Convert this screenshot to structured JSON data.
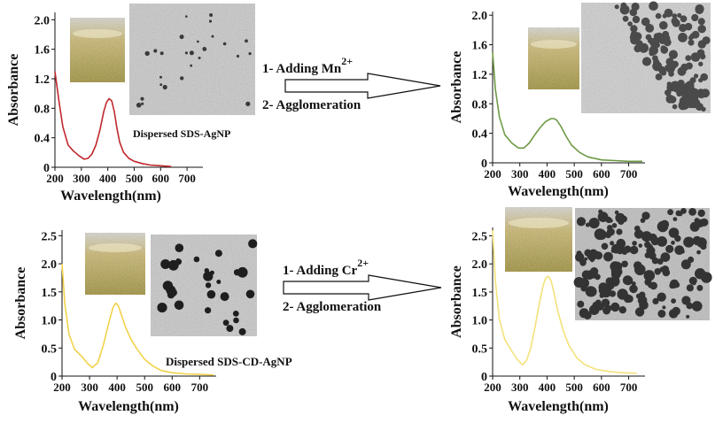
{
  "chart_data": [
    {
      "type": "line",
      "xlabel": "Wavelength(nm)",
      "ylabel": "Absorbance",
      "xlim": [
        200,
        760
      ],
      "ylim": [
        0,
        2.1
      ],
      "xticks": [
        200,
        300,
        400,
        500,
        600,
        700
      ],
      "yticks": [
        0,
        0.4,
        0.8,
        1.2,
        1.6,
        2.0
      ],
      "ytick_labels": [
        "0",
        "0.4",
        "0.8",
        "1.2",
        "1.6",
        "2.0"
      ],
      "series": [
        {
          "color": "#c0282d",
          "x": [
            200,
            215,
            230,
            250,
            270,
            290,
            310,
            325,
            340,
            355,
            370,
            385,
            395,
            405,
            415,
            425,
            435,
            445,
            460,
            480,
            500,
            530,
            560,
            600,
            640
          ],
          "y": [
            1.3,
            0.9,
            0.55,
            0.3,
            0.22,
            0.16,
            0.11,
            0.12,
            0.18,
            0.3,
            0.5,
            0.76,
            0.88,
            0.93,
            0.9,
            0.75,
            0.52,
            0.34,
            0.2,
            0.12,
            0.08,
            0.05,
            0.03,
            0.02,
            0.01
          ]
        }
      ],
      "annotation": "Dispersed SDS-AgNP"
    },
    {
      "type": "line",
      "xlabel": "Wavelength(nm)",
      "ylabel": "Absorbance",
      "xlim": [
        200,
        760
      ],
      "ylim": [
        0,
        2.05
      ],
      "xticks": [
        200,
        300,
        400,
        500,
        600,
        700
      ],
      "yticks": [
        0,
        0.4,
        0.8,
        1.2,
        1.6,
        2.0
      ],
      "ytick_labels": [
        "0",
        "0.4",
        "0.8",
        "1.2",
        "1.6",
        "2.0"
      ],
      "series": [
        {
          "color": "#6e9a45",
          "x": [
            200,
            210,
            225,
            245,
            270,
            295,
            315,
            335,
            355,
            375,
            395,
            415,
            425,
            435,
            450,
            470,
            490,
            520,
            550,
            600,
            650,
            700,
            750
          ],
          "y": [
            1.5,
            1.0,
            0.62,
            0.38,
            0.27,
            0.2,
            0.2,
            0.27,
            0.38,
            0.48,
            0.56,
            0.6,
            0.6,
            0.58,
            0.5,
            0.36,
            0.24,
            0.14,
            0.08,
            0.04,
            0.03,
            0.02,
            0.02
          ]
        }
      ]
    },
    {
      "type": "line",
      "xlabel": "Wavelength(nm)",
      "ylabel": "Absorbance",
      "xlim": [
        200,
        760
      ],
      "ylim": [
        0,
        2.6
      ],
      "xticks": [
        200,
        300,
        400,
        500,
        600,
        700
      ],
      "yticks": [
        0,
        0.5,
        1.0,
        1.5,
        2.0,
        2.5
      ],
      "ytick_labels": [
        "0",
        "0.5",
        "1.0",
        "1.5",
        "2.0",
        "2.5"
      ],
      "series": [
        {
          "color": "#f2d24a",
          "x": [
            200,
            210,
            225,
            245,
            270,
            290,
            310,
            330,
            350,
            370,
            385,
            395,
            405,
            415,
            430,
            450,
            470,
            500,
            530,
            560,
            600,
            650,
            700,
            750
          ],
          "y": [
            2.0,
            1.3,
            0.75,
            0.48,
            0.36,
            0.24,
            0.15,
            0.24,
            0.55,
            0.95,
            1.22,
            1.3,
            1.25,
            1.1,
            0.88,
            0.66,
            0.5,
            0.3,
            0.18,
            0.1,
            0.06,
            0.04,
            0.03,
            0.02
          ]
        }
      ],
      "annotation": "Dispersed SDS-CD-AgNP"
    },
    {
      "type": "line",
      "xlabel": "Wavelength(nm)",
      "ylabel": "Absorbance",
      "xlim": [
        200,
        760
      ],
      "ylim": [
        0,
        2.65
      ],
      "xticks": [
        200,
        300,
        400,
        500,
        600,
        700
      ],
      "yticks": [
        0,
        0.5,
        1.0,
        1.5,
        2.0,
        2.5
      ],
      "ytick_labels": [
        "0",
        "0.5",
        "1.0",
        "1.5",
        "2.0",
        "2.5"
      ],
      "series": [
        {
          "color": "#f3e27a",
          "x": [
            200,
            210,
            225,
            245,
            270,
            290,
            310,
            325,
            340,
            355,
            370,
            385,
            395,
            405,
            415,
            425,
            440,
            460,
            480,
            510,
            540,
            580,
            630,
            680,
            730
          ],
          "y": [
            2.6,
            1.7,
            1.0,
            0.65,
            0.45,
            0.3,
            0.2,
            0.28,
            0.5,
            0.85,
            1.25,
            1.6,
            1.75,
            1.78,
            1.7,
            1.5,
            1.15,
            0.8,
            0.55,
            0.32,
            0.2,
            0.12,
            0.08,
            0.06,
            0.05
          ]
        }
      ]
    }
  ],
  "arrows": [
    {
      "step1": "1- Adding Mn",
      "step1_sup": "2+",
      "step2": "2- Agglomeration"
    },
    {
      "step1": "1- Adding Cr",
      "step1_sup": "2+",
      "step2": "2- Agglomeration"
    }
  ]
}
